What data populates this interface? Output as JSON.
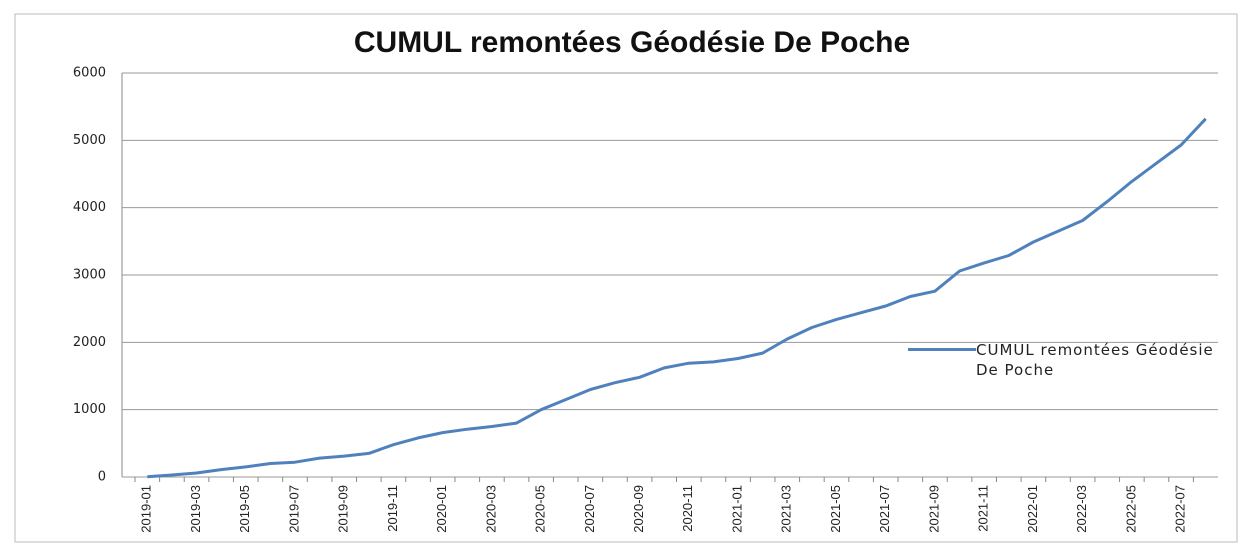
{
  "chart_data": {
    "type": "line",
    "title": "CUMUL remontées Géodésie De Poche",
    "categories": [
      "2019-01",
      null,
      "2019-03",
      null,
      "2019-05",
      null,
      "2019-07",
      null,
      "2019-09",
      null,
      "2019-11",
      null,
      "2020-01",
      null,
      "2020-03",
      null,
      "2020-05",
      null,
      "2020-07",
      null,
      "2020-09",
      null,
      "2020-11",
      null,
      "2021-01",
      null,
      "2021-03",
      null,
      "2021-05",
      null,
      "2021-07",
      null,
      "2021-09",
      null,
      "2021-11",
      null,
      "2022-01",
      null,
      "2022-03",
      null,
      "2022-05",
      null,
      "2022-07",
      null
    ],
    "series": [
      {
        "name": "CUMUL remontées Géodésie De Poche",
        "color": "#4f81bd",
        "values": [
          5,
          30,
          60,
          110,
          150,
          200,
          220,
          280,
          310,
          350,
          480,
          580,
          660,
          710,
          750,
          800,
          1000,
          1150,
          1300,
          1400,
          1480,
          1620,
          1690,
          1710,
          1760,
          1840,
          2050,
          2220,
          2340,
          2440,
          2540,
          2680,
          2760,
          3060,
          3180,
          3290,
          3490,
          3650,
          3810,
          4090,
          4390,
          4660,
          4930,
          5320
        ]
      }
    ],
    "ylim": [
      0,
      6000
    ],
    "yticks": [
      0,
      1000,
      2000,
      3000,
      4000,
      5000,
      6000
    ],
    "grid": true,
    "legend": "right"
  }
}
